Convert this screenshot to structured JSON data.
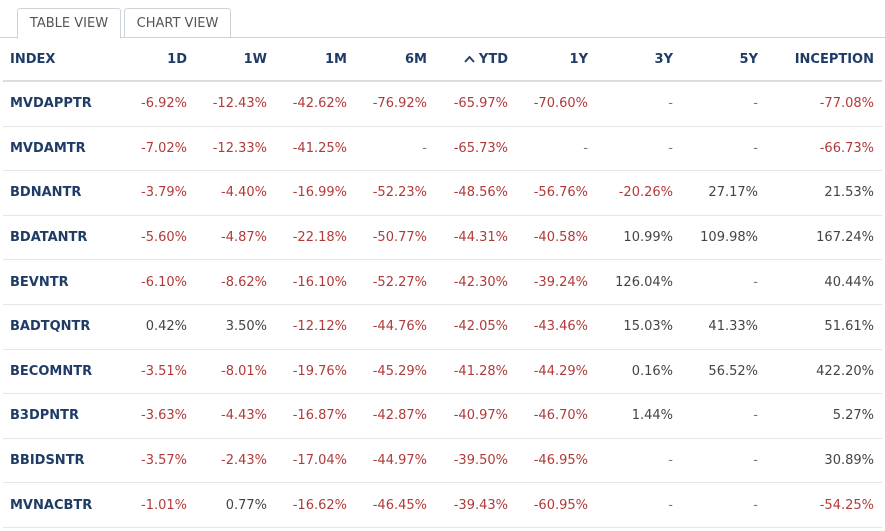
{
  "tabs": [
    {
      "label": "TABLE VIEW",
      "active": true
    },
    {
      "label": "CHART VIEW",
      "active": false
    }
  ],
  "colors": {
    "negative": "#b03a3a",
    "header_text": "#1f3c66",
    "positive": "#444444"
  },
  "table": {
    "sort_icon": "chevron-up-icon",
    "headers": [
      "INDEX",
      "1D",
      "1W",
      "1M",
      "6M",
      "YTD",
      "1Y",
      "3Y",
      "5Y",
      "INCEPTION"
    ],
    "rows": [
      {
        "index": "MVDAPPTR",
        "values": [
          "-6.92%",
          "-12.43%",
          "-42.62%",
          "-76.92%",
          "-65.97%",
          "-70.60%",
          "-",
          "-",
          "-77.08%"
        ]
      },
      {
        "index": "MVDAMTR",
        "values": [
          "-7.02%",
          "-12.33%",
          "-41.25%",
          "-",
          "-65.73%",
          "-",
          "-",
          "-",
          "-66.73%"
        ]
      },
      {
        "index": "BDNANTR",
        "values": [
          "-3.79%",
          "-4.40%",
          "-16.99%",
          "-52.23%",
          "-48.56%",
          "-56.76%",
          "-20.26%",
          "27.17%",
          "21.53%"
        ]
      },
      {
        "index": "BDATANTR",
        "values": [
          "-5.60%",
          "-4.87%",
          "-22.18%",
          "-50.77%",
          "-44.31%",
          "-40.58%",
          "10.99%",
          "109.98%",
          "167.24%"
        ]
      },
      {
        "index": "BEVNTR",
        "values": [
          "-6.10%",
          "-8.62%",
          "-16.10%",
          "-52.27%",
          "-42.30%",
          "-39.24%",
          "126.04%",
          "-",
          "40.44%"
        ]
      },
      {
        "index": "BADTQNTR",
        "values": [
          "0.42%",
          "3.50%",
          "-12.12%",
          "-44.76%",
          "-42.05%",
          "-43.46%",
          "15.03%",
          "41.33%",
          "51.61%"
        ]
      },
      {
        "index": "BECOMNTR",
        "values": [
          "-3.51%",
          "-8.01%",
          "-19.76%",
          "-45.29%",
          "-41.28%",
          "-44.29%",
          "0.16%",
          "56.52%",
          "422.20%"
        ]
      },
      {
        "index": "B3DPNTR",
        "values": [
          "-3.63%",
          "-4.43%",
          "-16.87%",
          "-42.87%",
          "-40.97%",
          "-46.70%",
          "1.44%",
          "-",
          "5.27%"
        ]
      },
      {
        "index": "BBIDSNTR",
        "values": [
          "-3.57%",
          "-2.43%",
          "-17.04%",
          "-44.97%",
          "-39.50%",
          "-46.95%",
          "-",
          "-",
          "30.89%"
        ]
      },
      {
        "index": "MVNACBTR",
        "values": [
          "-1.01%",
          "0.77%",
          "-16.62%",
          "-46.45%",
          "-39.43%",
          "-60.95%",
          "-",
          "-",
          "-54.25%"
        ]
      }
    ]
  }
}
